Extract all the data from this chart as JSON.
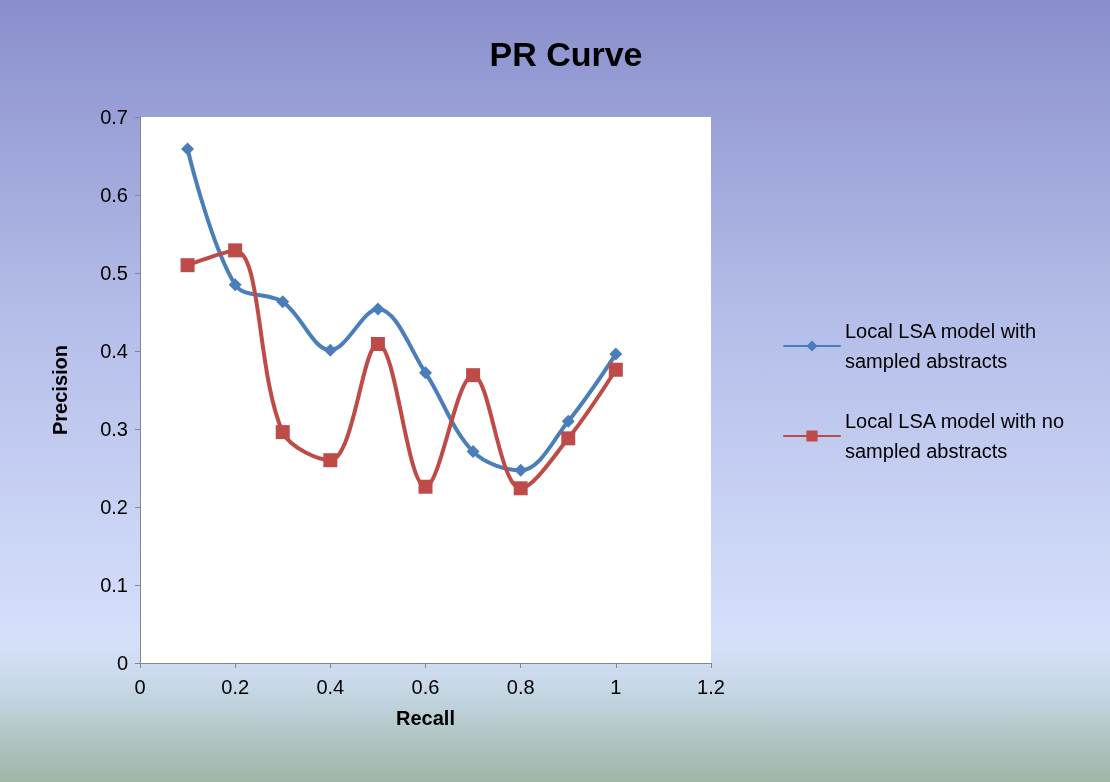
{
  "chart_data": {
    "type": "line",
    "title": "PR Curve",
    "xlabel": "Recall",
    "ylabel": "Precision",
    "x": [
      0.1,
      0.2,
      0.3,
      0.4,
      0.5,
      0.6,
      0.7,
      0.8,
      0.9,
      1.0
    ],
    "series": [
      {
        "name": "Local LSA model with sampled abstracts",
        "color": "#4a7ebb",
        "marker": "diamond",
        "values": [
          0.659,
          0.485,
          0.463,
          0.401,
          0.454,
          0.372,
          0.271,
          0.247,
          0.31,
          0.396
        ]
      },
      {
        "name": "Local LSA model with no sampled abstracts",
        "color": "#be4b48",
        "marker": "square",
        "values": [
          0.51,
          0.529,
          0.296,
          0.26,
          0.409,
          0.226,
          0.369,
          0.224,
          0.288,
          0.376
        ]
      }
    ],
    "xlim": [
      0,
      1.2
    ],
    "xticks": [
      0,
      0.2,
      0.4,
      0.6,
      0.8,
      1,
      1.2
    ],
    "ylim": [
      0,
      0.7
    ],
    "yticks": [
      0,
      0.1,
      0.2,
      0.3,
      0.4,
      0.5,
      0.6,
      0.7
    ],
    "grid": false,
    "legend": "right",
    "line_style": "solid"
  }
}
